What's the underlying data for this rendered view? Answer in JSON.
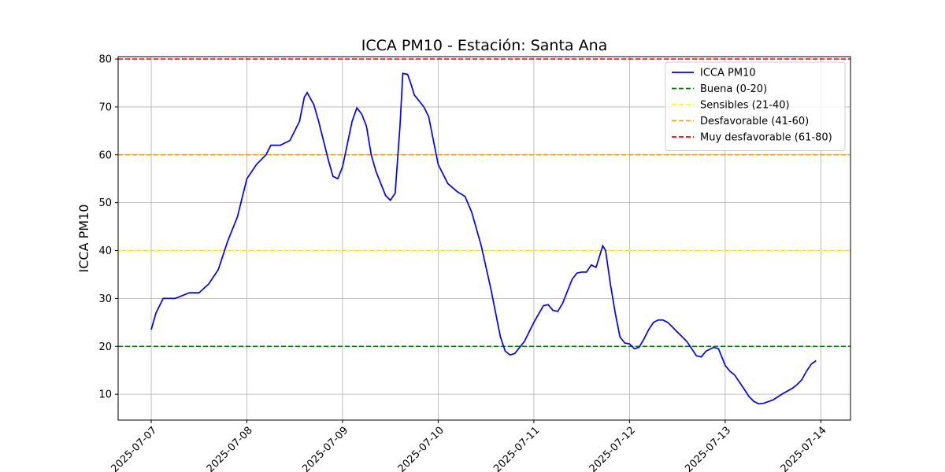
{
  "chart_data": {
    "type": "line",
    "title": "ICCA PM10 - Estación: Santa Ana",
    "y_label": "ICCA PM10",
    "x": [
      0,
      0.05,
      0.125,
      0.25,
      0.4,
      0.5,
      0.6,
      0.7,
      0.8,
      0.9,
      1.0,
      1.1,
      1.2,
      1.25,
      1.35,
      1.45,
      1.55,
      1.6,
      1.63,
      1.7,
      1.75,
      1.85,
      1.9,
      1.95,
      2.0,
      2.1,
      2.15,
      2.2,
      2.25,
      2.3,
      2.35,
      2.45,
      2.5,
      2.55,
      2.6,
      2.63,
      2.68,
      2.72,
      2.75,
      2.85,
      2.9,
      3.0,
      3.1,
      3.2,
      3.28,
      3.35,
      3.45,
      3.55,
      3.65,
      3.7,
      3.75,
      3.8,
      3.9,
      4.0,
      4.1,
      4.15,
      4.2,
      4.25,
      4.3,
      4.4,
      4.45,
      4.5,
      4.55,
      4.6,
      4.65,
      4.72,
      4.75,
      4.8,
      4.85,
      4.9,
      4.95,
      5.0,
      5.05,
      5.1,
      5.15,
      5.2,
      5.25,
      5.3,
      5.35,
      5.4,
      5.5,
      5.6,
      5.7,
      5.75,
      5.8,
      5.88,
      5.93,
      6.0,
      6.05,
      6.1,
      6.2,
      6.25,
      6.3,
      6.35,
      6.4,
      6.5,
      6.6,
      6.7,
      6.75,
      6.8,
      6.85,
      6.9,
      6.95
    ],
    "series": [
      {
        "name": "ICCA PM10",
        "color": "#0000ff",
        "values": [
          23.5,
          27,
          30,
          30,
          31.2,
          31.2,
          33,
          36,
          42,
          47,
          55,
          58,
          60,
          62,
          62,
          63,
          67,
          72,
          73,
          70.5,
          67,
          59,
          55.5,
          55,
          57.5,
          67,
          69.8,
          68.5,
          66,
          60,
          56.5,
          51.5,
          50.5,
          52,
          66,
          77,
          76.8,
          74.5,
          72.5,
          70,
          68,
          58,
          54,
          52.3,
          51.3,
          48,
          41,
          32,
          22,
          19,
          18.2,
          18.5,
          21,
          25,
          28.5,
          28.7,
          27.5,
          27.3,
          29,
          34,
          35.3,
          35.5,
          35.5,
          37,
          36.5,
          41,
          40,
          33,
          27,
          22,
          20.7,
          20.5,
          19.5,
          19.8,
          21.5,
          23.5,
          25,
          25.5,
          25.5,
          25,
          23,
          21,
          18,
          17.8,
          19,
          19.8,
          19.5,
          16,
          14.8,
          14,
          11,
          9.5,
          8.5,
          8,
          8.1,
          8.8,
          10.1,
          11.2,
          12,
          13,
          14.8,
          16.3,
          17
        ]
      }
    ],
    "reference_lines": [
      {
        "name": "Buena (0-20)",
        "value": 20,
        "color": "#008000"
      },
      {
        "name": "Sensibles (21-40)",
        "value": 40,
        "color": "#ffff00"
      },
      {
        "name": "Desfavorable (41-60)",
        "value": 60,
        "color": "#ffa500"
      },
      {
        "name": "Muy desfavorable (61-80)",
        "value": 80,
        "color": "#ff0000"
      }
    ],
    "xlim": [
      -0.346,
      7.31
    ],
    "xticks": [
      {
        "value": 0,
        "label": "2025-07-07"
      },
      {
        "value": 1,
        "label": "2025-07-08"
      },
      {
        "value": 2,
        "label": "2025-07-09"
      },
      {
        "value": 3,
        "label": "2025-07-10"
      },
      {
        "value": 4,
        "label": "2025-07-11"
      },
      {
        "value": 5,
        "label": "2025-07-12"
      },
      {
        "value": 6,
        "label": "2025-07-13"
      },
      {
        "value": 7,
        "label": "2025-07-14"
      }
    ],
    "ylim": [
      4.6,
      80.5
    ],
    "yticks": [
      10,
      20,
      30,
      40,
      50,
      60,
      70,
      80
    ],
    "grid": true,
    "legend": "upper right"
  }
}
